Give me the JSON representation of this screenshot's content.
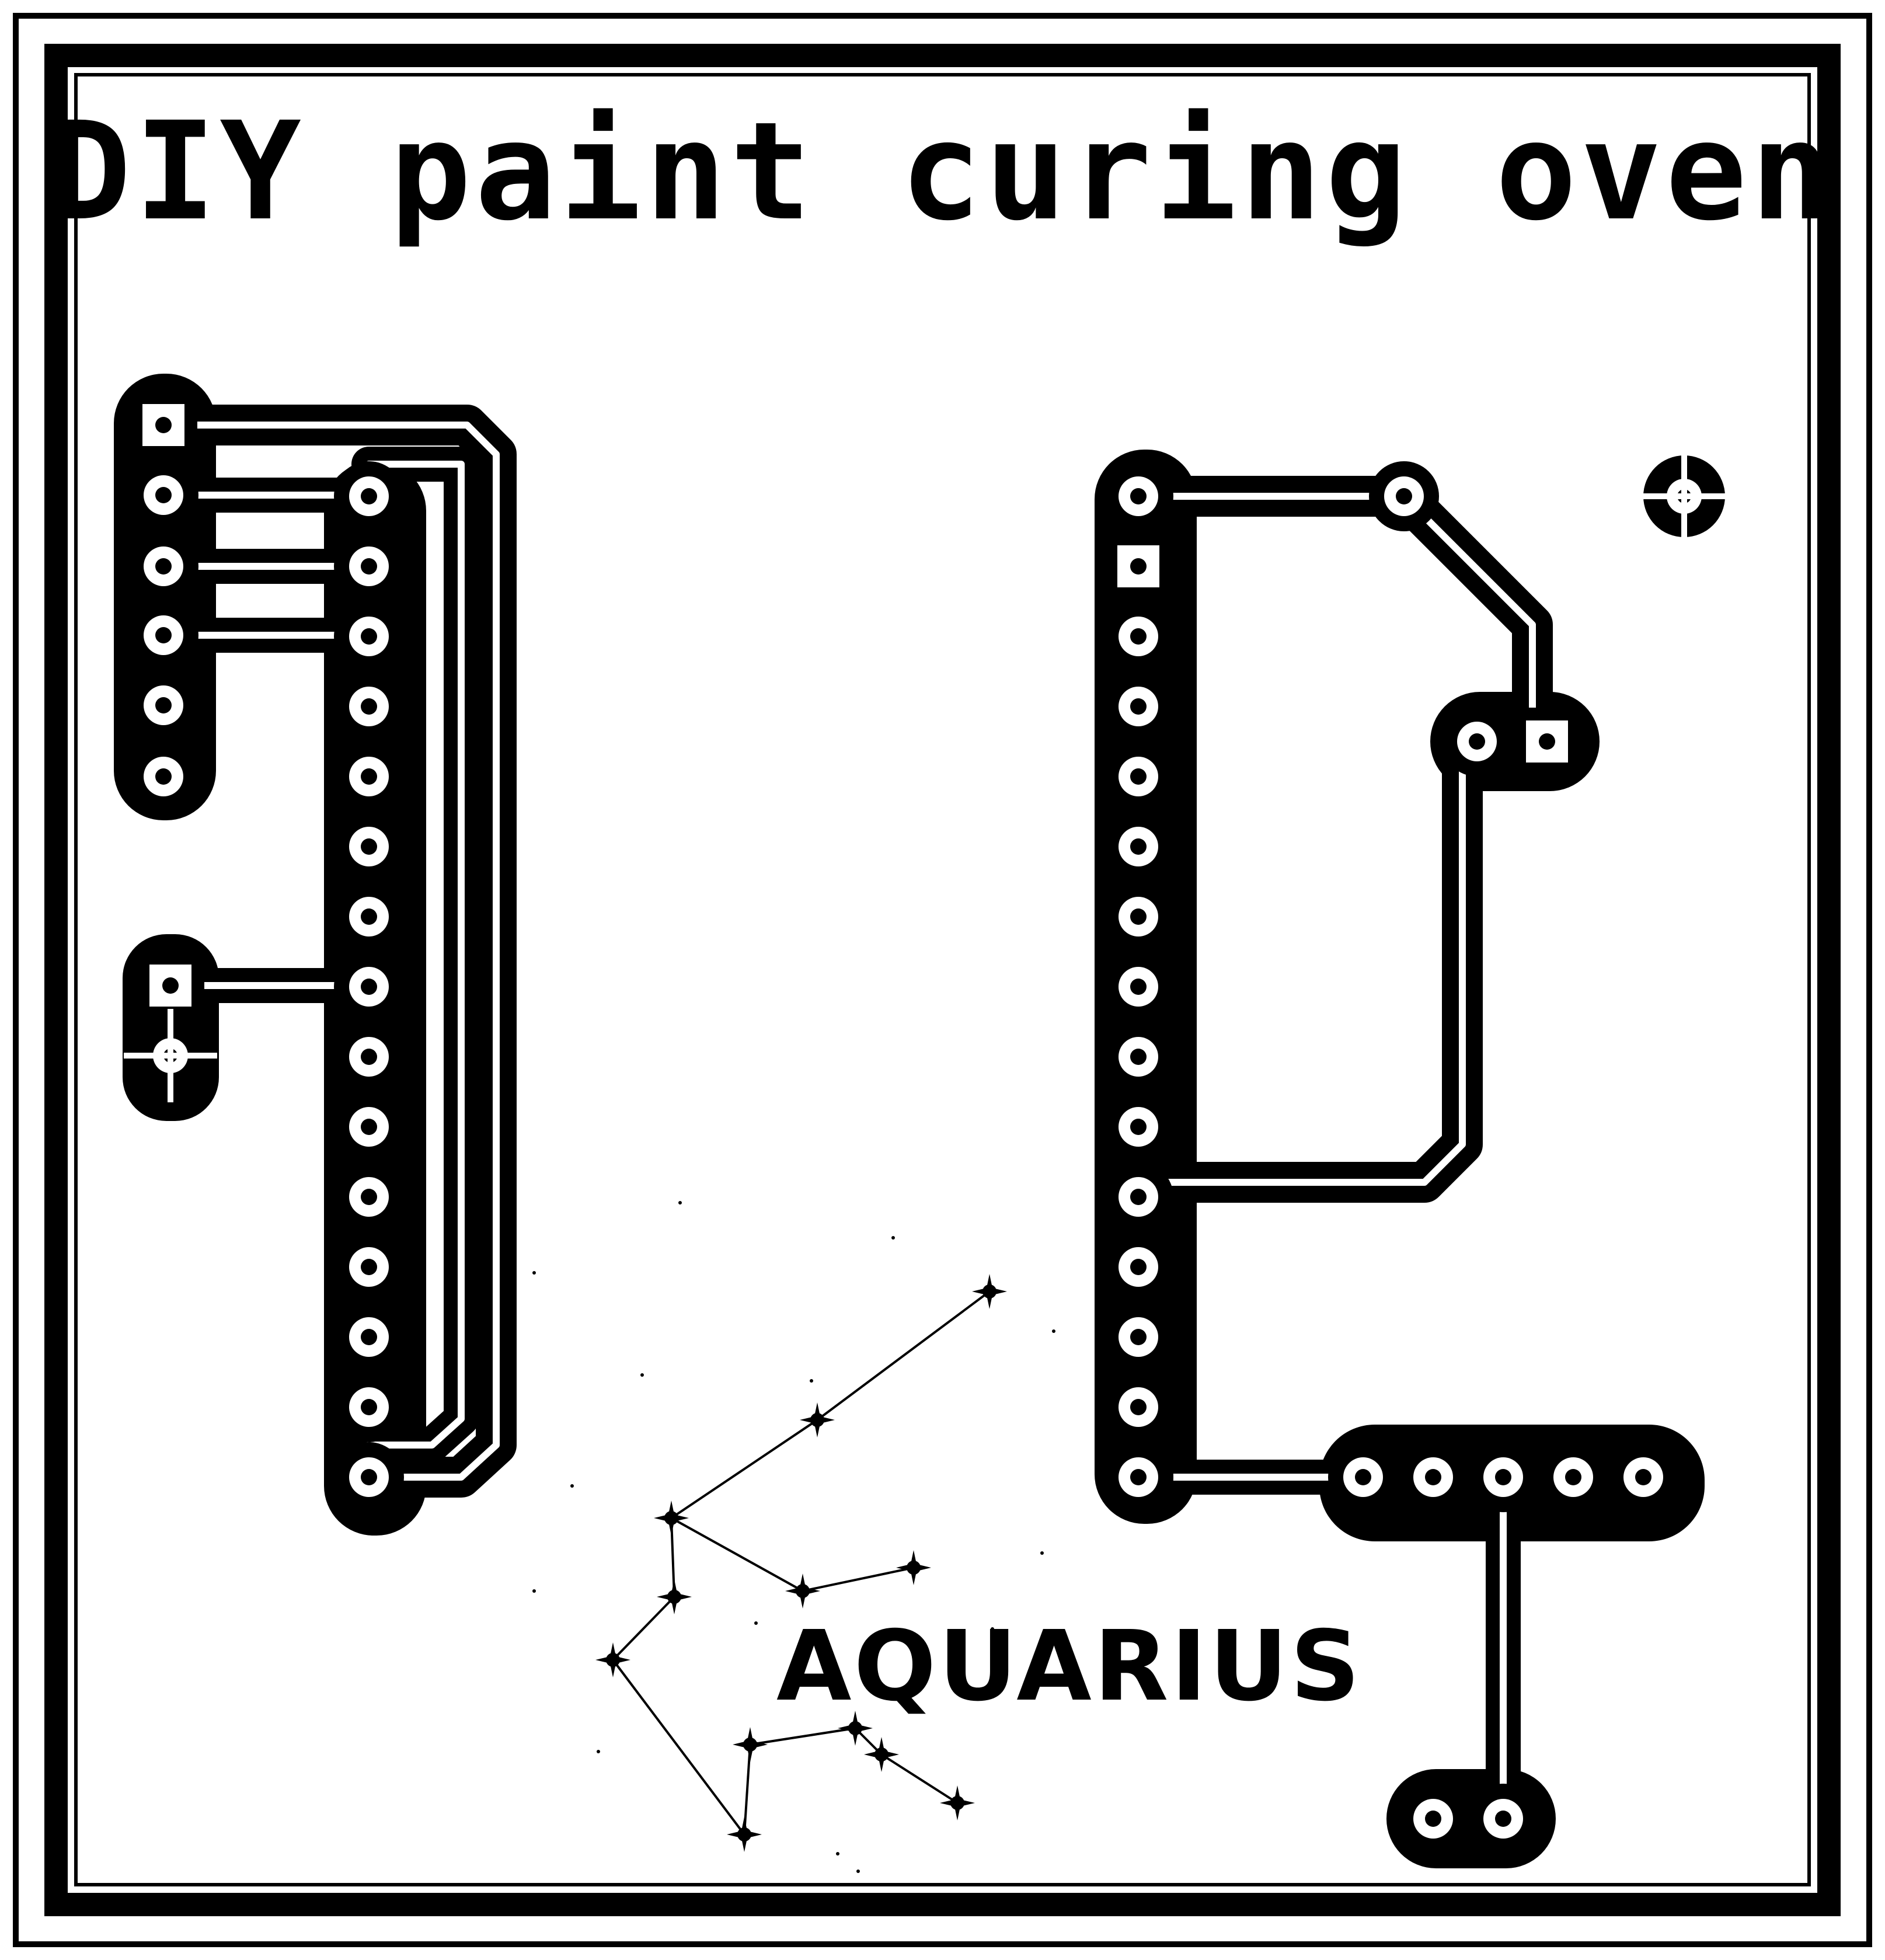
{
  "title": "DIY paint curing oven",
  "constellation_label": "AQUARIUS",
  "colors": {
    "copper": "#000000",
    "background": "#ffffff",
    "drill": "#ffffff"
  },
  "icons": [
    "fiducial-icon",
    "mounting-hole-icon",
    "constellation-art"
  ]
}
